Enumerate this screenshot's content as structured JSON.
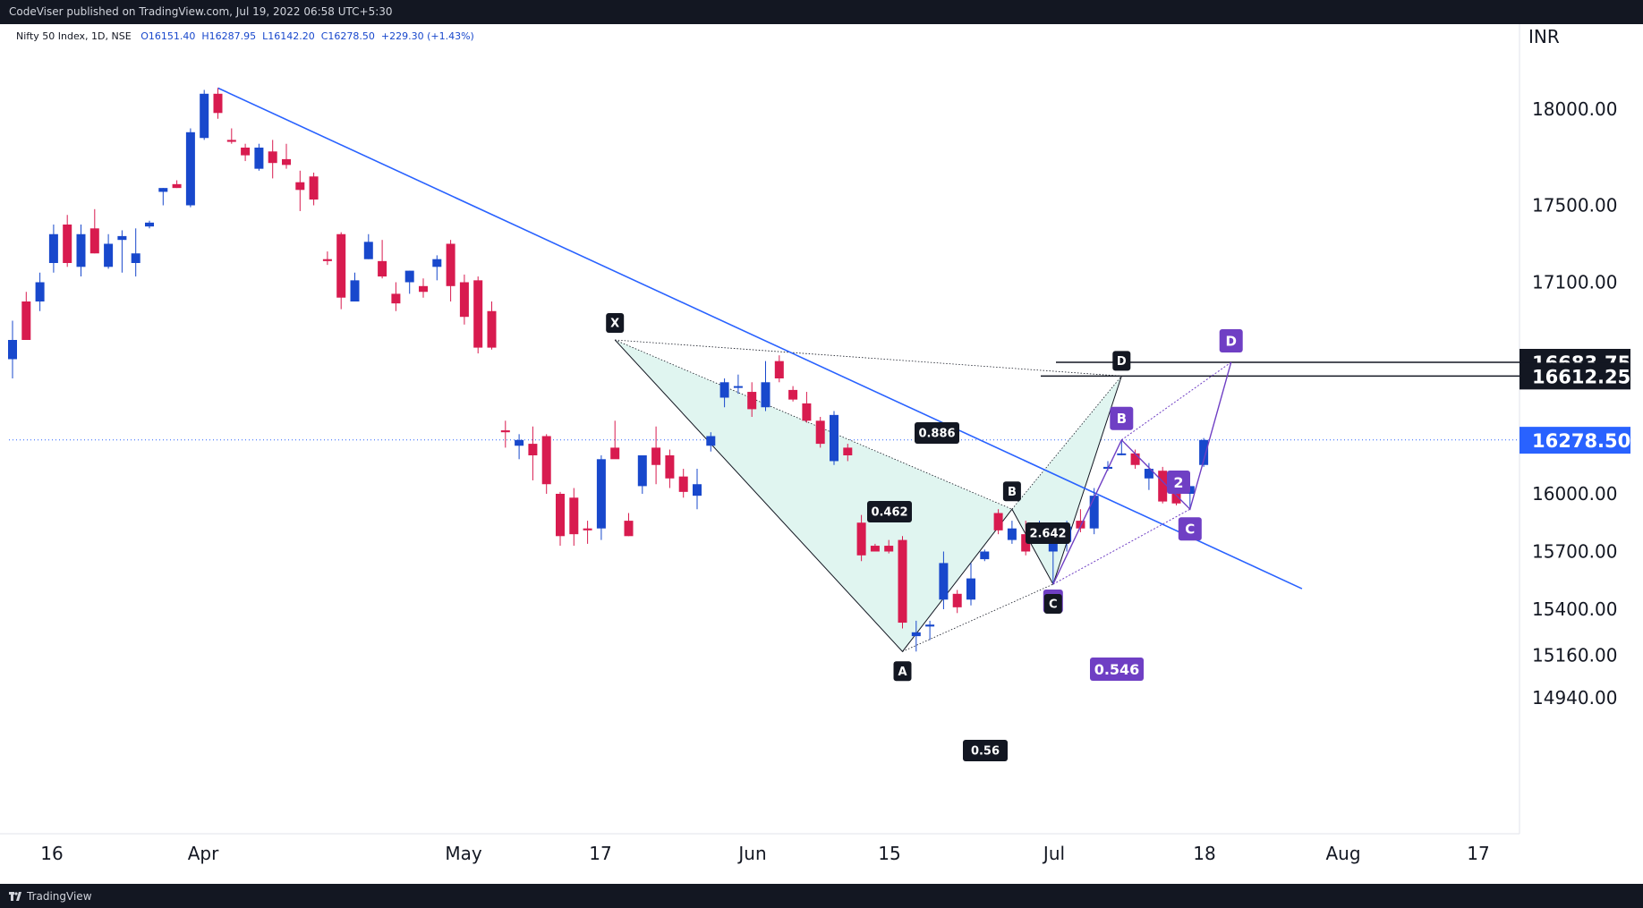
{
  "header": {
    "published_by": "CodeViser published on TradingView.com, Jul 19, 2022 06:58 UTC+5:30"
  },
  "legend": {
    "symbol": "Nifty 50 Index, 1D, NSE",
    "open": "O16151.40",
    "high": "H16287.95",
    "low": "L16142.20",
    "close": "C16278.50",
    "change": "+229.30 (+1.43%)"
  },
  "footer": {
    "brand": "TradingView"
  },
  "colors": {
    "up": "#1848cc",
    "down": "#d81b4f",
    "trendline": "#2962ff",
    "pattern_fill": "#e0f5f0",
    "purple": "#6f3fc4",
    "background": "#ffffff",
    "frame": "#131722"
  },
  "chart_data": {
    "type": "candlestick",
    "currency_label": "INR",
    "y_ticks": [
      "18000.00",
      "17500.00",
      "17100.00",
      "16000.00",
      "15700.00",
      "15400.00",
      "15160.00",
      "14940.00"
    ],
    "x_ticks": [
      "16",
      "Apr",
      "May",
      "17",
      "Jun",
      "15",
      "Jul",
      "18",
      "Aug",
      "17"
    ],
    "price_labels": [
      {
        "value": 16683.75,
        "text": "16683.75",
        "style": "dark"
      },
      {
        "value": 16612.25,
        "text": "16612.25",
        "style": "dark"
      },
      {
        "value": 16278.5,
        "text": "16278.50",
        "style": "last"
      }
    ],
    "candles": [
      {
        "o": 16700,
        "h": 16900,
        "l": 16600,
        "c": 16800
      },
      {
        "o": 17000,
        "h": 17050,
        "l": 16800,
        "c": 16800
      },
      {
        "o": 17000,
        "h": 17150,
        "l": 16950,
        "c": 17100
      },
      {
        "o": 17200,
        "h": 17400,
        "l": 17150,
        "c": 17350
      },
      {
        "o": 17400,
        "h": 17450,
        "l": 17180,
        "c": 17200
      },
      {
        "o": 17180,
        "h": 17400,
        "l": 17130,
        "c": 17350
      },
      {
        "o": 17380,
        "h": 17480,
        "l": 17250,
        "c": 17250
      },
      {
        "o": 17180,
        "h": 17350,
        "l": 17170,
        "c": 17300
      },
      {
        "o": 17320,
        "h": 17370,
        "l": 17150,
        "c": 17340
      },
      {
        "o": 17200,
        "h": 17380,
        "l": 17130,
        "c": 17250
      },
      {
        "o": 17390,
        "h": 17420,
        "l": 17380,
        "c": 17410
      },
      {
        "o": 17570,
        "h": 17590,
        "l": 17500,
        "c": 17590
      },
      {
        "o": 17610,
        "h": 17630,
        "l": 17590,
        "c": 17590
      },
      {
        "o": 17500,
        "h": 17900,
        "l": 17490,
        "c": 17880
      },
      {
        "o": 17850,
        "h": 18100,
        "l": 17840,
        "c": 18080
      },
      {
        "o": 18080,
        "h": 18110,
        "l": 17950,
        "c": 17980
      },
      {
        "o": 17840,
        "h": 17900,
        "l": 17820,
        "c": 17830
      },
      {
        "o": 17800,
        "h": 17820,
        "l": 17730,
        "c": 17760
      },
      {
        "o": 17690,
        "h": 17820,
        "l": 17680,
        "c": 17800
      },
      {
        "o": 17780,
        "h": 17840,
        "l": 17640,
        "c": 17720
      },
      {
        "o": 17740,
        "h": 17820,
        "l": 17690,
        "c": 17710
      },
      {
        "o": 17620,
        "h": 17680,
        "l": 17470,
        "c": 17580
      },
      {
        "o": 17650,
        "h": 17670,
        "l": 17500,
        "c": 17530
      },
      {
        "o": 17220,
        "h": 17260,
        "l": 17190,
        "c": 17210
      },
      {
        "o": 17350,
        "h": 17360,
        "l": 16960,
        "c": 17020
      },
      {
        "o": 17000,
        "h": 17150,
        "l": 17000,
        "c": 17110
      },
      {
        "o": 17220,
        "h": 17350,
        "l": 17220,
        "c": 17310
      },
      {
        "o": 17210,
        "h": 17320,
        "l": 17120,
        "c": 17130
      },
      {
        "o": 17040,
        "h": 17100,
        "l": 16950,
        "c": 16990
      },
      {
        "o": 17100,
        "h": 17160,
        "l": 17040,
        "c": 17160
      },
      {
        "o": 17080,
        "h": 17120,
        "l": 17020,
        "c": 17050
      },
      {
        "o": 17180,
        "h": 17240,
        "l": 17110,
        "c": 17220
      },
      {
        "o": 17300,
        "h": 17320,
        "l": 17000,
        "c": 17080
      },
      {
        "o": 17100,
        "h": 17140,
        "l": 16880,
        "c": 16920
      },
      {
        "o": 17110,
        "h": 17130,
        "l": 16730,
        "c": 16760
      },
      {
        "o": 16950,
        "h": 17000,
        "l": 16750,
        "c": 16760
      },
      {
        "o": 16330,
        "h": 16380,
        "l": 16240,
        "c": 16320
      },
      {
        "o": 16250,
        "h": 16310,
        "l": 16180,
        "c": 16280
      },
      {
        "o": 16260,
        "h": 16350,
        "l": 16070,
        "c": 16200
      },
      {
        "o": 16300,
        "h": 16310,
        "l": 16000,
        "c": 16050
      },
      {
        "o": 16000,
        "h": 16010,
        "l": 15730,
        "c": 15780
      },
      {
        "o": 15980,
        "h": 16030,
        "l": 15730,
        "c": 15790
      },
      {
        "o": 15820,
        "h": 15860,
        "l": 15740,
        "c": 15810
      },
      {
        "o": 15820,
        "h": 16200,
        "l": 15760,
        "c": 16180
      },
      {
        "o": 16240,
        "h": 16380,
        "l": 16200,
        "c": 16180
      },
      {
        "o": 15860,
        "h": 15900,
        "l": 15780,
        "c": 15780
      },
      {
        "o": 16040,
        "h": 16200,
        "l": 16000,
        "c": 16200
      },
      {
        "o": 16240,
        "h": 16350,
        "l": 16050,
        "c": 16150
      },
      {
        "o": 16200,
        "h": 16230,
        "l": 16030,
        "c": 16080
      },
      {
        "o": 16090,
        "h": 16130,
        "l": 15980,
        "c": 16010
      },
      {
        "o": 15990,
        "h": 16130,
        "l": 15920,
        "c": 16050
      },
      {
        "o": 16250,
        "h": 16320,
        "l": 16220,
        "c": 16300
      },
      {
        "o": 16500,
        "h": 16600,
        "l": 16450,
        "c": 16580
      },
      {
        "o": 16560,
        "h": 16620,
        "l": 16520,
        "c": 16560
      },
      {
        "o": 16530,
        "h": 16580,
        "l": 16400,
        "c": 16440
      },
      {
        "o": 16450,
        "h": 16690,
        "l": 16430,
        "c": 16580
      },
      {
        "o": 16690,
        "h": 16720,
        "l": 16580,
        "c": 16600
      },
      {
        "o": 16540,
        "h": 16560,
        "l": 16480,
        "c": 16490
      },
      {
        "o": 16470,
        "h": 16530,
        "l": 16370,
        "c": 16380
      },
      {
        "o": 16380,
        "h": 16400,
        "l": 16240,
        "c": 16260
      },
      {
        "o": 16170,
        "h": 16430,
        "l": 16150,
        "c": 16410
      },
      {
        "o": 16240,
        "h": 16260,
        "l": 16170,
        "c": 16200
      },
      {
        "o": 15850,
        "h": 15890,
        "l": 15650,
        "c": 15680
      },
      {
        "o": 15730,
        "h": 15740,
        "l": 15700,
        "c": 15700
      },
      {
        "o": 15730,
        "h": 15760,
        "l": 15690,
        "c": 15700
      },
      {
        "o": 15760,
        "h": 15780,
        "l": 15300,
        "c": 15330
      },
      {
        "o": 15260,
        "h": 15340,
        "l": 15180,
        "c": 15280
      },
      {
        "o": 15310,
        "h": 15340,
        "l": 15240,
        "c": 15320
      },
      {
        "o": 15450,
        "h": 15700,
        "l": 15400,
        "c": 15640
      },
      {
        "o": 15480,
        "h": 15500,
        "l": 15380,
        "c": 15410
      },
      {
        "o": 15450,
        "h": 15640,
        "l": 15420,
        "c": 15560
      },
      {
        "o": 15660,
        "h": 15710,
        "l": 15650,
        "c": 15700
      },
      {
        "o": 15900,
        "h": 15920,
        "l": 15790,
        "c": 15810
      },
      {
        "o": 15760,
        "h": 15860,
        "l": 15740,
        "c": 15820
      },
      {
        "o": 15790,
        "h": 15860,
        "l": 15680,
        "c": 15700
      },
      {
        "o": 15780,
        "h": 15860,
        "l": 15760,
        "c": 15780
      },
      {
        "o": 15700,
        "h": 15780,
        "l": 15530,
        "c": 15750
      },
      {
        "o": 15750,
        "h": 15860,
        "l": 15700,
        "c": 15830
      },
      {
        "o": 15860,
        "h": 15920,
        "l": 15800,
        "c": 15820
      },
      {
        "o": 15820,
        "h": 16030,
        "l": 15790,
        "c": 15990
      },
      {
        "o": 16130,
        "h": 16170,
        "l": 16120,
        "c": 16140
      },
      {
        "o": 16210,
        "h": 16280,
        "l": 16200,
        "c": 16210
      },
      {
        "o": 16210,
        "h": 16230,
        "l": 16130,
        "c": 16150
      },
      {
        "o": 16080,
        "h": 16160,
        "l": 16020,
        "c": 16130
      },
      {
        "o": 16120,
        "h": 16140,
        "l": 15950,
        "c": 15960
      },
      {
        "o": 16000,
        "h": 16060,
        "l": 15940,
        "c": 15950
      },
      {
        "o": 16000,
        "h": 16040,
        "l": 15920,
        "c": 16040
      },
      {
        "o": 16150,
        "h": 16290,
        "l": 16140,
        "c": 16280
      }
    ],
    "pattern_points": [
      {
        "label": "X",
        "candle": 44,
        "price": 16800
      },
      {
        "label": "A",
        "candle": 65,
        "price": 15180
      },
      {
        "label": "B",
        "candle": 73,
        "price": 15920
      },
      {
        "label": "C",
        "candle": 76,
        "price": 15530
      },
      {
        "label": "D",
        "candle": 81,
        "price": 16612.25
      }
    ],
    "pattern_ratios": [
      "0.462",
      "0.56",
      "2.642",
      "0.886"
    ],
    "abcd_points": [
      {
        "label": "B",
        "candle": 81,
        "price": 16280
      },
      {
        "label": "C",
        "candle": 86,
        "price": 15920
      },
      {
        "label": "D",
        "candle": 89,
        "price": 16683.75
      }
    ],
    "abcd_ratios": [
      "2",
      "0.546"
    ],
    "trendline": {
      "from": {
        "candle": 15,
        "price": 18110
      },
      "to": {
        "candle": 93,
        "price": 15530
      }
    }
  }
}
